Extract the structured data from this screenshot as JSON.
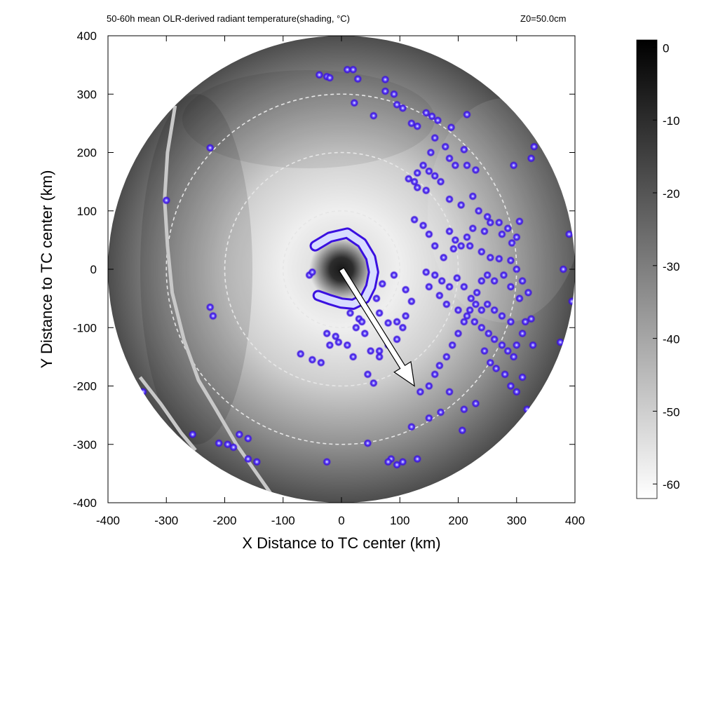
{
  "header": {
    "title": "50-60h mean OLR-derived radiant temperature(shading, °C)",
    "z0": "Z0=50.0cm"
  },
  "chart_data": {
    "type": "heatmap",
    "title": "50-60h mean OLR-derived radiant temperature(shading, °C)",
    "annotation": "Z0=50.0cm",
    "xlabel": "X Distance to TC center (km)",
    "ylabel": "Y Distance to TC center (km)",
    "xlim": [
      -400,
      400
    ],
    "ylim": [
      -400,
      400
    ],
    "xticks": [
      -400,
      -300,
      -200,
      -100,
      0,
      100,
      200,
      300,
      400
    ],
    "yticks": [
      -400,
      -300,
      -200,
      -100,
      0,
      100,
      200,
      300,
      400
    ],
    "colorbar": {
      "ticks": [
        0,
        -10,
        -20,
        -30,
        -40,
        -50,
        -60
      ],
      "range": [
        -62,
        1
      ],
      "colormap": [
        "#ffffff",
        "#000000"
      ]
    },
    "radial_profile_degC": [
      {
        "r": 0,
        "t": -5
      },
      {
        "r": 20,
        "t": -10
      },
      {
        "r": 35,
        "t": -30
      },
      {
        "r": 55,
        "t": -55
      },
      {
        "r": 100,
        "t": -58
      },
      {
        "r": 200,
        "t": -50
      },
      {
        "r": 300,
        "t": -35
      },
      {
        "r": 400,
        "t": -18
      }
    ],
    "range_rings_km": [
      100,
      200,
      300
    ],
    "storm_motion_arrow": {
      "from": [
        0,
        0
      ],
      "to": [
        125,
        -200
      ]
    },
    "coastline": [
      [
        -285,
        280
      ],
      [
        -298,
        200
      ],
      [
        -303,
        120
      ],
      [
        -298,
        40
      ],
      [
        -290,
        -40
      ],
      [
        -270,
        -120
      ],
      [
        -245,
        -190
      ],
      [
        -215,
        -240
      ],
      [
        -180,
        -300
      ],
      [
        -145,
        -350
      ],
      [
        -110,
        -400
      ]
    ],
    "coastline2": [
      [
        -345,
        -185
      ],
      [
        -310,
        -230
      ],
      [
        -275,
        -280
      ],
      [
        -250,
        -310
      ]
    ],
    "eyewall_arc": [
      [
        -45,
        40
      ],
      [
        -20,
        55
      ],
      [
        10,
        62
      ],
      [
        35,
        45
      ],
      [
        50,
        20
      ],
      [
        55,
        -5
      ],
      [
        50,
        -30
      ],
      [
        40,
        -50
      ],
      [
        20,
        -60
      ],
      [
        0,
        -58
      ],
      [
        -20,
        -52
      ],
      [
        -40,
        -45
      ]
    ],
    "lightning_points": [
      [
        -38,
        333
      ],
      [
        -25,
        330
      ],
      [
        -20,
        328
      ],
      [
        10,
        342
      ],
      [
        20,
        342
      ],
      [
        28,
        326
      ],
      [
        75,
        325
      ],
      [
        22,
        285
      ],
      [
        75,
        305
      ],
      [
        90,
        300
      ],
      [
        95,
        282
      ],
      [
        105,
        276
      ],
      [
        55,
        263
      ],
      [
        120,
        250
      ],
      [
        130,
        245
      ],
      [
        145,
        268
      ],
      [
        155,
        262
      ],
      [
        165,
        255
      ],
      [
        215,
        265
      ],
      [
        188,
        243
      ],
      [
        160,
        225
      ],
      [
        178,
        210
      ],
      [
        210,
        205
      ],
      [
        153,
        200
      ],
      [
        185,
        190
      ],
      [
        195,
        178
      ],
      [
        215,
        178
      ],
      [
        230,
        170
      ],
      [
        140,
        178
      ],
      [
        130,
        165
      ],
      [
        150,
        168
      ],
      [
        160,
        160
      ],
      [
        115,
        155
      ],
      [
        125,
        150
      ],
      [
        130,
        140
      ],
      [
        145,
        135
      ],
      [
        170,
        150
      ],
      [
        185,
        120
      ],
      [
        205,
        110
      ],
      [
        225,
        125
      ],
      [
        235,
        100
      ],
      [
        250,
        90
      ],
      [
        255,
        80
      ],
      [
        270,
        80
      ],
      [
        285,
        70
      ],
      [
        305,
        82
      ],
      [
        300,
        55
      ],
      [
        292,
        45
      ],
      [
        275,
        60
      ],
      [
        245,
        65
      ],
      [
        225,
        70
      ],
      [
        215,
        55
      ],
      [
        205,
        40
      ],
      [
        192,
        35
      ],
      [
        175,
        20
      ],
      [
        160,
        40
      ],
      [
        150,
        60
      ],
      [
        140,
        75
      ],
      [
        125,
        85
      ],
      [
        185,
        65
      ],
      [
        195,
        50
      ],
      [
        220,
        40
      ],
      [
        240,
        30
      ],
      [
        255,
        20
      ],
      [
        270,
        18
      ],
      [
        290,
        15
      ],
      [
        300,
        0
      ],
      [
        310,
        -20
      ],
      [
        320,
        -40
      ],
      [
        305,
        -50
      ],
      [
        290,
        -30
      ],
      [
        278,
        -10
      ],
      [
        262,
        -20
      ],
      [
        250,
        -10
      ],
      [
        240,
        -20
      ],
      [
        232,
        -40
      ],
      [
        222,
        -50
      ],
      [
        210,
        -30
      ],
      [
        198,
        -15
      ],
      [
        185,
        -30
      ],
      [
        172,
        -20
      ],
      [
        160,
        -10
      ],
      [
        145,
        -5
      ],
      [
        150,
        -30
      ],
      [
        168,
        -45
      ],
      [
        180,
        -60
      ],
      [
        200,
        -70
      ],
      [
        215,
        -80
      ],
      [
        228,
        -90
      ],
      [
        240,
        -100
      ],
      [
        252,
        -110
      ],
      [
        262,
        -120
      ],
      [
        275,
        -130
      ],
      [
        285,
        -140
      ],
      [
        295,
        -150
      ],
      [
        300,
        -130
      ],
      [
        310,
        -110
      ],
      [
        315,
        -90
      ],
      [
        290,
        -90
      ],
      [
        275,
        -80
      ],
      [
        262,
        -70
      ],
      [
        250,
        -60
      ],
      [
        240,
        -70
      ],
      [
        230,
        -60
      ],
      [
        220,
        -70
      ],
      [
        210,
        -90
      ],
      [
        200,
        -110
      ],
      [
        190,
        -130
      ],
      [
        180,
        -150
      ],
      [
        168,
        -165
      ],
      [
        160,
        -180
      ],
      [
        150,
        -200
      ],
      [
        135,
        -210
      ],
      [
        245,
        -140
      ],
      [
        255,
        -160
      ],
      [
        265,
        -170
      ],
      [
        280,
        -180
      ],
      [
        290,
        -200
      ],
      [
        300,
        -210
      ],
      [
        318,
        -240
      ],
      [
        230,
        -230
      ],
      [
        210,
        -240
      ],
      [
        185,
        -210
      ],
      [
        170,
        -245
      ],
      [
        150,
        -255
      ],
      [
        120,
        -270
      ],
      [
        105,
        -330
      ],
      [
        95,
        -335
      ],
      [
        85,
        -325
      ],
      [
        80,
        -330
      ],
      [
        130,
        -325
      ],
      [
        110,
        -80
      ],
      [
        95,
        -90
      ],
      [
        80,
        -92
      ],
      [
        65,
        -75
      ],
      [
        60,
        -50
      ],
      [
        70,
        -25
      ],
      [
        90,
        -10
      ],
      [
        110,
        -35
      ],
      [
        120,
        -55
      ],
      [
        105,
        -100
      ],
      [
        95,
        -120
      ],
      [
        80,
        -130
      ],
      [
        65,
        -150
      ],
      [
        50,
        -140
      ],
      [
        40,
        -110
      ],
      [
        30,
        -85
      ],
      [
        15,
        -75
      ],
      [
        0,
        -60
      ],
      [
        -15,
        -55
      ],
      [
        -30,
        -50
      ],
      [
        -40,
        -45
      ],
      [
        -55,
        -10
      ],
      [
        -50,
        -5
      ],
      [
        -45,
        40
      ],
      [
        -10,
        -115
      ],
      [
        -5,
        -125
      ],
      [
        -20,
        -130
      ],
      [
        -25,
        -110
      ],
      [
        -50,
        -155
      ],
      [
        -35,
        -160
      ],
      [
        -70,
        -145
      ],
      [
        10,
        -130
      ],
      [
        20,
        -150
      ],
      [
        45,
        -180
      ],
      [
        55,
        -195
      ],
      [
        25,
        -100
      ],
      [
        35,
        -90
      ],
      [
        65,
        -140
      ],
      [
        330,
        210
      ],
      [
        325,
        190
      ],
      [
        295,
        178
      ],
      [
        390,
        60
      ],
      [
        380,
        0
      ],
      [
        395,
        -55
      ],
      [
        375,
        -125
      ],
      [
        328,
        -130
      ],
      [
        325,
        -85
      ],
      [
        310,
        -185
      ],
      [
        -225,
        208
      ],
      [
        -300,
        118
      ],
      [
        -225,
        -65
      ],
      [
        -220,
        -80
      ],
      [
        -340,
        -210
      ],
      [
        -255,
        -283
      ],
      [
        -210,
        -298
      ],
      [
        -195,
        -300
      ],
      [
        -185,
        -305
      ],
      [
        -175,
        -283
      ],
      [
        -160,
        -290
      ],
      [
        -160,
        -325
      ],
      [
        -145,
        -330
      ],
      [
        -25,
        -330
      ],
      [
        45,
        -298
      ],
      [
        207,
        -276
      ]
    ]
  }
}
